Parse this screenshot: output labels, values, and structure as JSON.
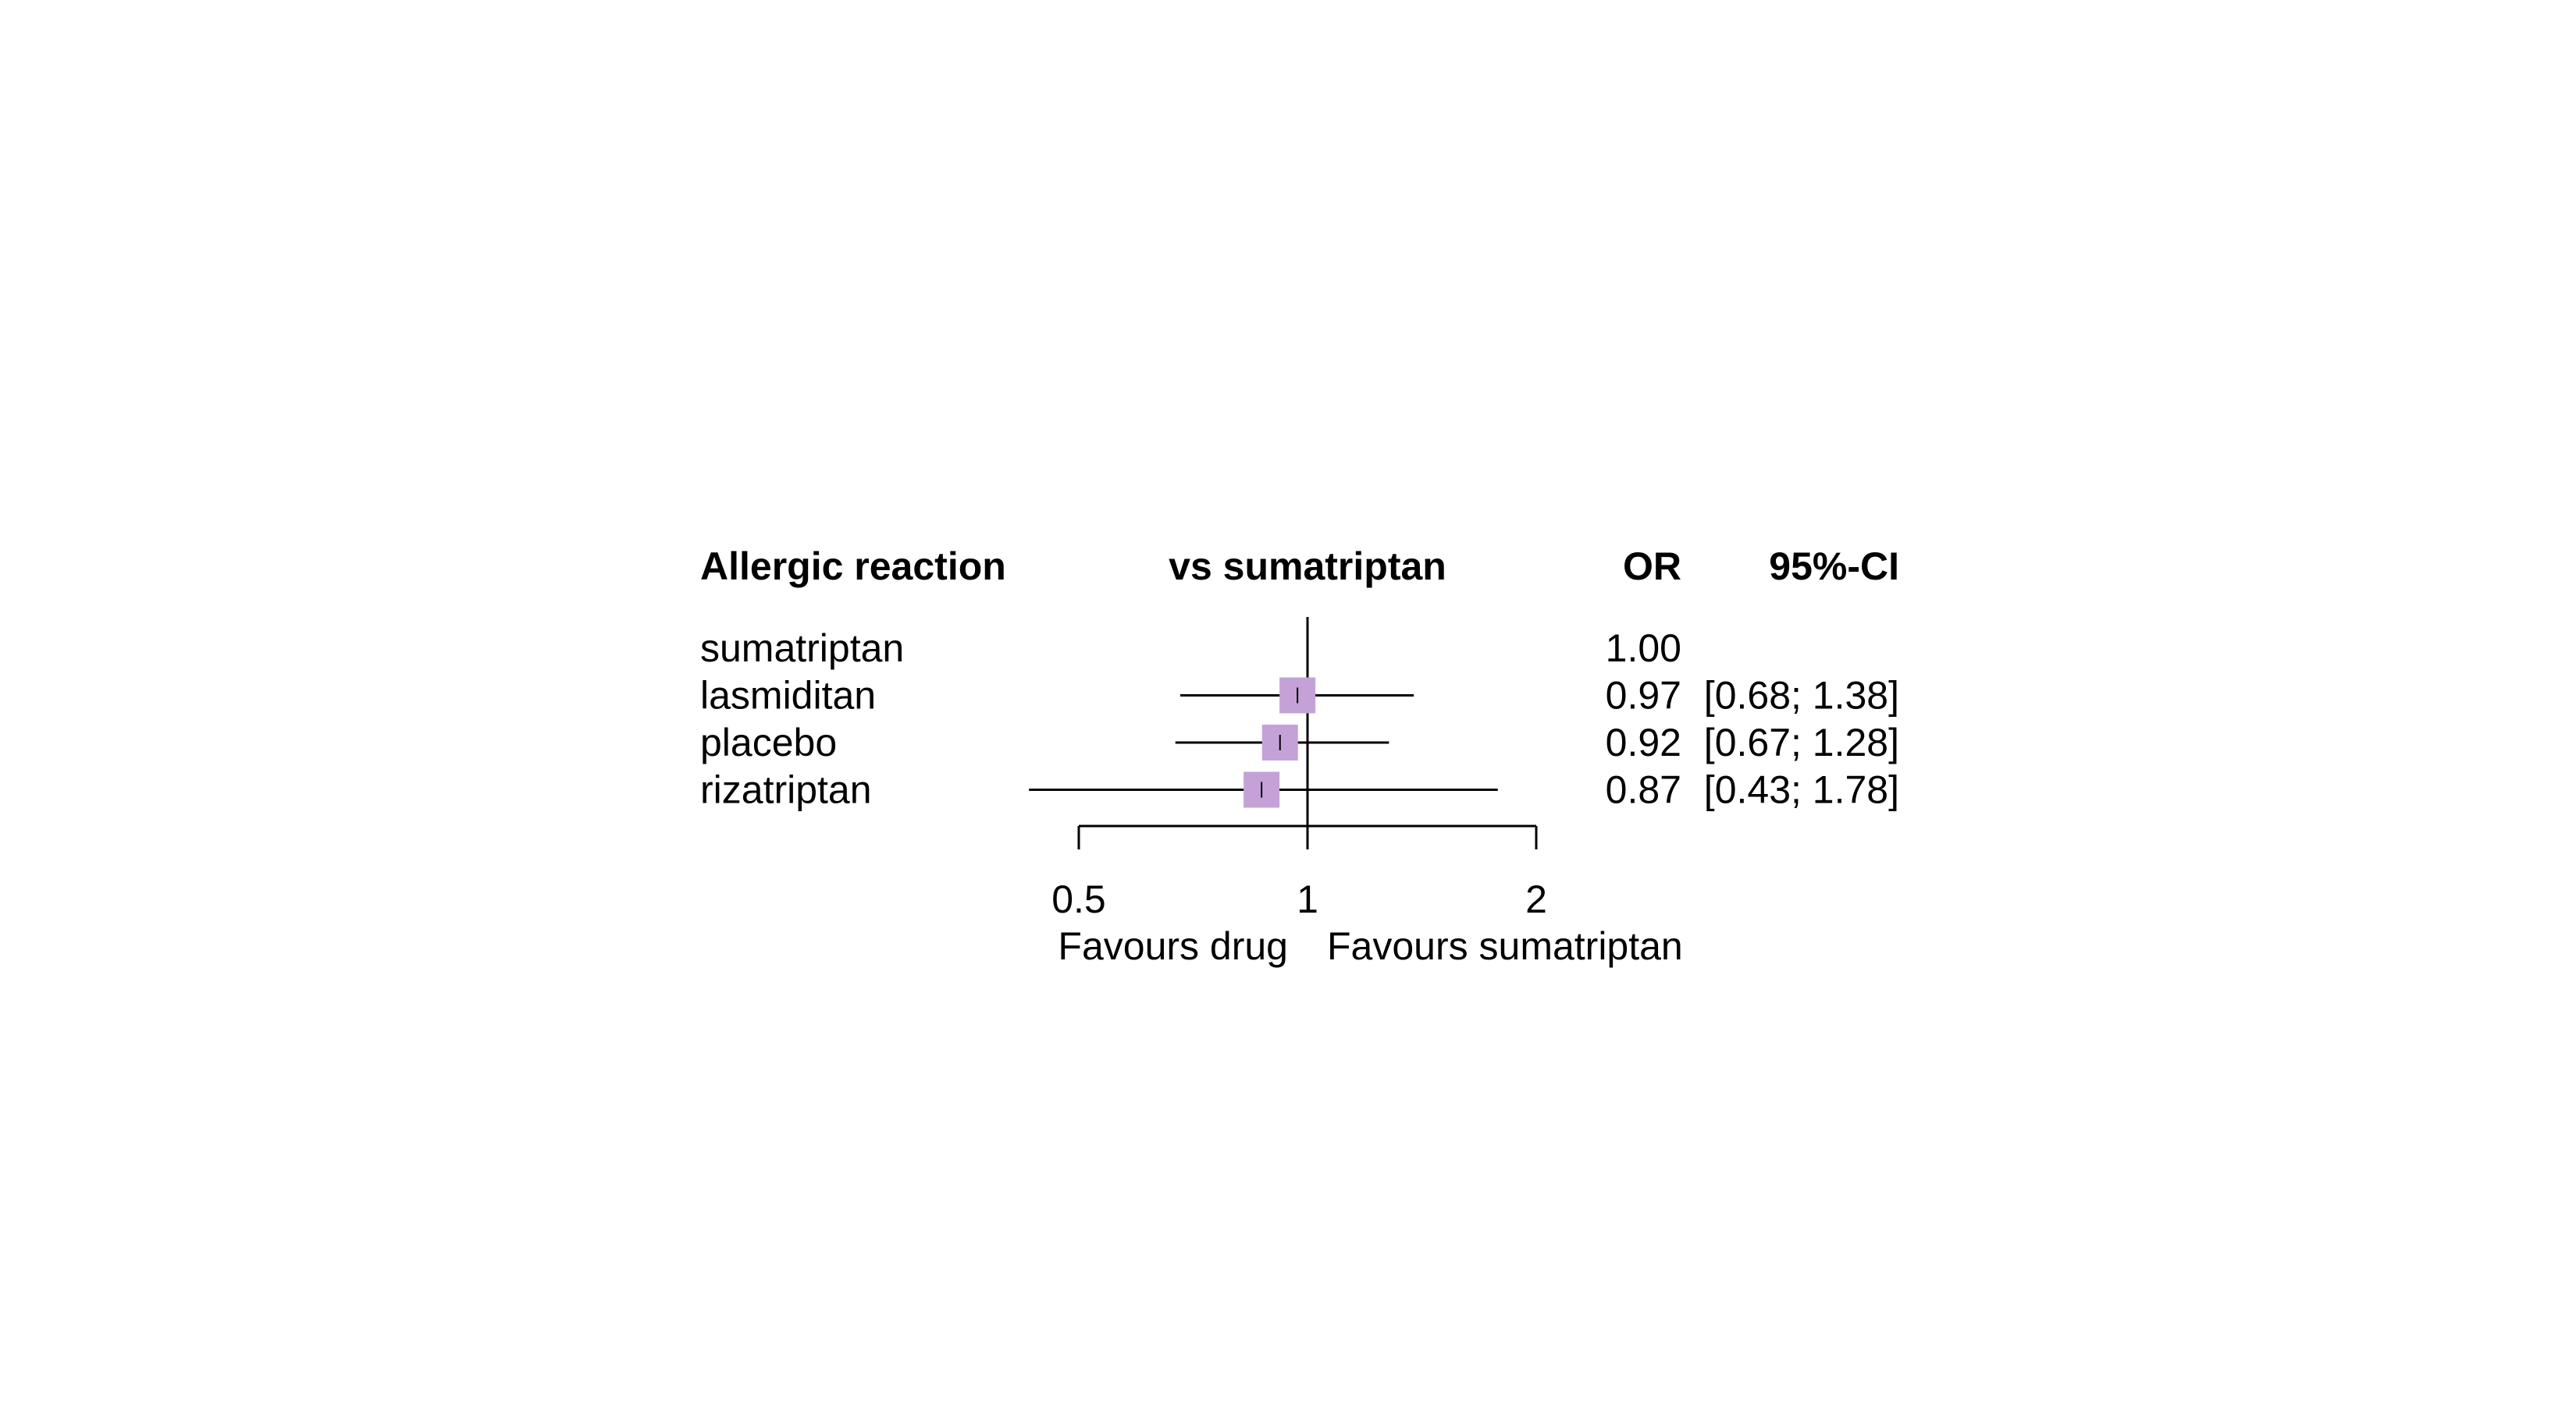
{
  "chart_data": {
    "type": "forest",
    "headers": {
      "outcome": "Allergic reaction",
      "comparison": "vs sumatriptan",
      "estimate": "OR",
      "ci": "95%-CI"
    },
    "scale": "log",
    "reference": 1,
    "xlim": [
      0.5,
      2
    ],
    "ticks": [
      {
        "value": 0.5,
        "label": "0.5"
      },
      {
        "value": 1,
        "label": "1"
      },
      {
        "value": 2,
        "label": "2"
      }
    ],
    "direction_labels": {
      "left": "Favours drug",
      "right": "Favours sumatriptan"
    },
    "box_color": "#C4A2D8",
    "rows": [
      {
        "treatment": "sumatriptan",
        "or": null,
        "lower": null,
        "upper": null,
        "or_text": "1.00",
        "ci_text": ""
      },
      {
        "treatment": "lasmiditan",
        "or": 0.97,
        "lower": 0.68,
        "upper": 1.38,
        "or_text": "0.97",
        "ci_text": "[0.68; 1.38]"
      },
      {
        "treatment": "placebo",
        "or": 0.92,
        "lower": 0.67,
        "upper": 1.28,
        "or_text": "0.92",
        "ci_text": "[0.67; 1.28]"
      },
      {
        "treatment": "rizatriptan",
        "or": 0.87,
        "lower": 0.43,
        "upper": 1.78,
        "or_text": "0.87",
        "ci_text": "[0.43; 1.78]"
      }
    ]
  }
}
